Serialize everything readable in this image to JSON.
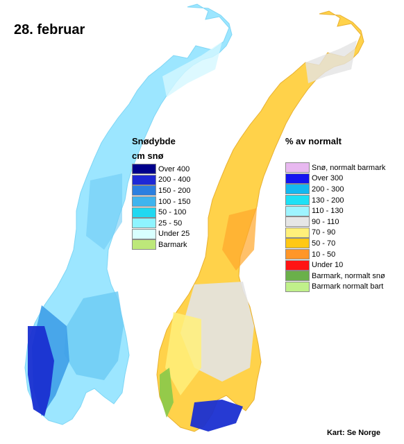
{
  "title": "28. februar",
  "credit": "Kart: Se Norge",
  "colors": {
    "left_base": "#9ce6ff",
    "left_mid": "#6fcbf5",
    "left_deep": "#3f9fe8",
    "left_dark": "#1a2fd1",
    "left_light": "#d4f7ff",
    "right_base": "#ffd24a",
    "right_gray": "#e3e3e3",
    "right_orange": "#ffa62b",
    "right_blue": "#1a2fd1",
    "right_light": "#fff07a",
    "right_green": "#88c94a"
  },
  "legend_left": {
    "title": "Snødybde",
    "subtitle": "cm snø",
    "items": [
      {
        "label": "Over 400",
        "color": "#00008b"
      },
      {
        "label": "200 - 400",
        "color": "#1e28d6"
      },
      {
        "label": "150 - 200",
        "color": "#2b7fe0"
      },
      {
        "label": "100 - 150",
        "color": "#3fb4ee"
      },
      {
        "label": "50 - 100",
        "color": "#20d8f0"
      },
      {
        "label": "25 - 50",
        "color": "#8ef4ff"
      },
      {
        "label": "Under 25",
        "color": "#d8ffff"
      },
      {
        "label": "Barmark",
        "color": "#bde87a"
      }
    ]
  },
  "legend_right": {
    "title": "% av normalt",
    "items": [
      {
        "label": "Snø, normalt barmark",
        "color": "#e8b8f0"
      },
      {
        "label": "Over 300",
        "color": "#1414f0"
      },
      {
        "label": "200 - 300",
        "color": "#14b8f0"
      },
      {
        "label": "130 - 200",
        "color": "#1ee0f5"
      },
      {
        "label": "110 - 130",
        "color": "#9ef4ff"
      },
      {
        "label": "90 - 110",
        "color": "#e6e6e6"
      },
      {
        "label": "70 - 90",
        "color": "#fff07a"
      },
      {
        "label": "50 - 70",
        "color": "#ffc814"
      },
      {
        "label": "10 - 50",
        "color": "#ff9628"
      },
      {
        "label": "Under 10",
        "color": "#ff1414"
      },
      {
        "label": "Barmark, normalt snø",
        "color": "#6ab04a"
      },
      {
        "label": "Barmark normalt bart",
        "color": "#c0f08a"
      }
    ]
  }
}
